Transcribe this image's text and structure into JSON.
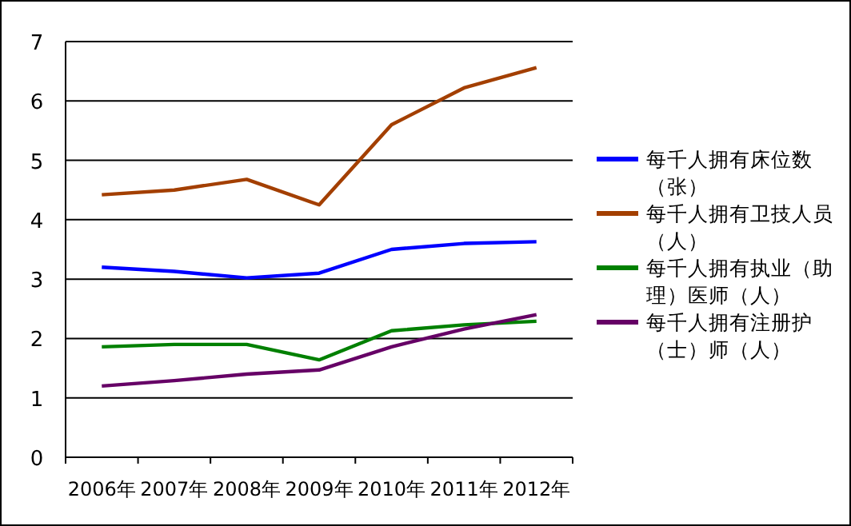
{
  "chart_data": {
    "type": "line",
    "categories": [
      "2006年",
      "2007年",
      "2008年",
      "2009年",
      "2010年",
      "2011年",
      "2012年"
    ],
    "ylim": [
      0,
      7
    ],
    "yticks": [
      0,
      1,
      2,
      3,
      4,
      5,
      6,
      7
    ],
    "grid": "y",
    "legend": "right",
    "marker": "none",
    "series": [
      {
        "name": "每千人拥有床位数（张）",
        "color": "#0000ff",
        "values": [
          3.2,
          3.13,
          3.02,
          3.1,
          3.5,
          3.6,
          3.63
        ]
      },
      {
        "name": "每千人拥有卫技人员（人）",
        "color": "#a33f00",
        "values": [
          4.42,
          4.5,
          4.68,
          4.25,
          5.6,
          6.22,
          6.56
        ]
      },
      {
        "name": "每千人拥有执业（助理）医师（人）",
        "color": "#008000",
        "values": [
          1.86,
          1.9,
          1.9,
          1.64,
          2.13,
          2.23,
          2.29
        ]
      },
      {
        "name": "每千人拥有注册护（士）师（人）",
        "color": "#660066",
        "values": [
          1.2,
          1.29,
          1.4,
          1.47,
          1.86,
          2.16,
          2.4
        ]
      }
    ]
  }
}
